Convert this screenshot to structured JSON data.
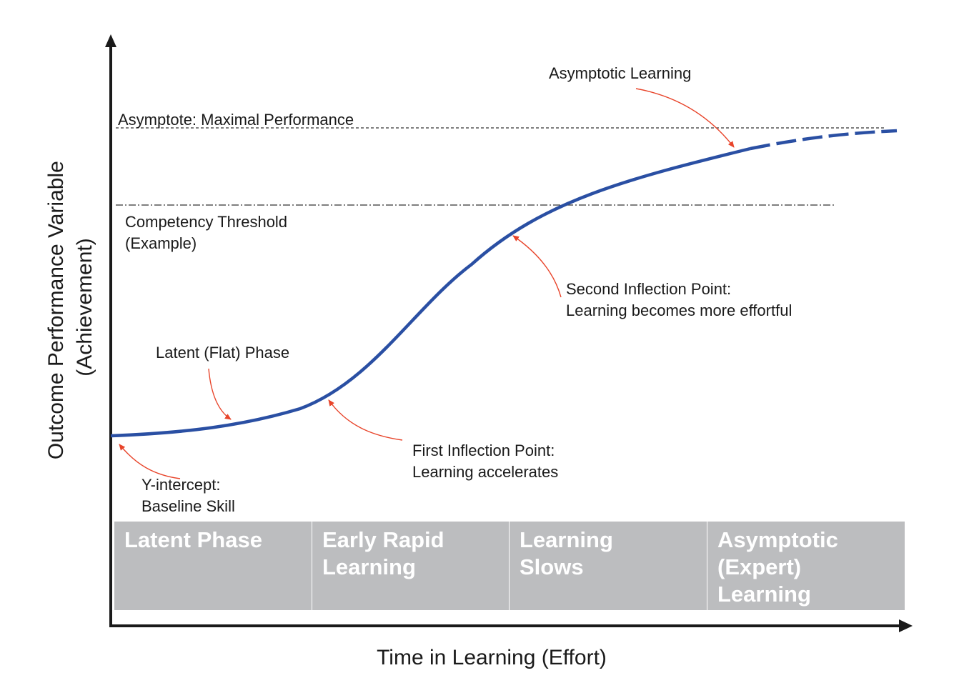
{
  "diagram": {
    "y_axis": {
      "label_line1": "Outcome Performance Variable",
      "label_line2": "(Achievement)"
    },
    "x_axis": {
      "label": "Time in Learning (Effort)"
    },
    "asymptote_label": "Asymptote: Maximal Performance",
    "threshold_label": {
      "line1": "Competency Threshold",
      "line2": "(Example)"
    },
    "annotations": {
      "asymptotic_learning": "Asymptotic Learning",
      "second_inflection": {
        "line1": "Second Inflection Point:",
        "line2": "Learning becomes more effortful"
      },
      "latent_phase": "Latent (Flat) Phase",
      "first_inflection": {
        "line1": "First Inflection Point:",
        "line2": "Learning accelerates"
      },
      "y_intercept": {
        "line1": "Y-intercept:",
        "line2": "Baseline Skill"
      }
    },
    "phases": [
      {
        "lines": [
          "Latent Phase"
        ]
      },
      {
        "lines": [
          "Early Rapid",
          "Learning"
        ]
      },
      {
        "lines": [
          "Learning",
          "Slows"
        ]
      },
      {
        "lines": [
          "Asymptotic",
          "(Expert)",
          "Learning"
        ]
      }
    ],
    "colors": {
      "curve": "#2a4fa3",
      "arrow": "#e8442a",
      "phase_box": "#bcbdbf",
      "axis": "#1a1a1a"
    }
  }
}
